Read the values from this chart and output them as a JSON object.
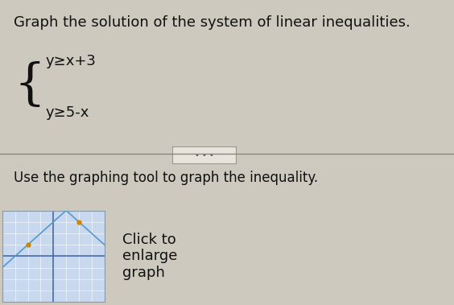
{
  "title": "Graph the solution of the system of linear inequalities.",
  "eq1": "y≥x+3",
  "eq2": "y≥5-x",
  "instruction": "Use the graphing tool to graph the inequality.",
  "click_text1": "Click to",
  "click_text2": "enlarge",
  "click_text3": "graph",
  "bg_color": "#cdc9be",
  "graph_bg": "#c8d8ee",
  "line_color": "#5599cc",
  "shade_color": "#b8ccdd",
  "point_color": "#cc8800",
  "axis_color": "#4466aa",
  "grid_color": "#ffffff",
  "text_color": "#111111",
  "sep_color": "#888880",
  "dots_bg": "#e8e4dc",
  "dots_border": "#999990",
  "xlim": [
    -4,
    4
  ],
  "ylim": [
    -4,
    4
  ],
  "point1_x": -2,
  "point1_y": 1,
  "point2_x": 2,
  "point2_y": 3,
  "title_fontsize": 13,
  "eq_fontsize": 13,
  "instr_fontsize": 12,
  "click_fontsize": 13
}
